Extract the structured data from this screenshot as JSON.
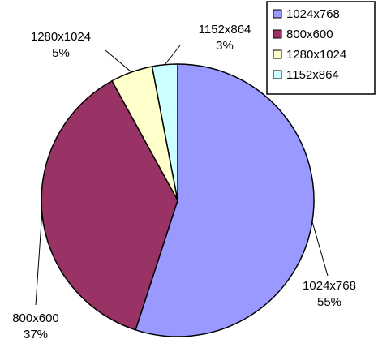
{
  "chart_data": {
    "type": "pie",
    "categories": [
      "1024x768",
      "800x600",
      "1280x1024",
      "1152x864"
    ],
    "values": [
      55,
      37,
      5,
      3
    ],
    "value_labels": [
      "55%",
      "37%",
      "5%",
      "3%"
    ],
    "colors": [
      "#9999ff",
      "#993366",
      "#ffffcc",
      "#ccffff"
    ],
    "legend": {
      "placement": "top-right",
      "entries": [
        "1024x768",
        "800x600",
        "1280x1024",
        "1152x864"
      ]
    },
    "start_angle": "12 o'clock",
    "direction": "clockwise"
  }
}
